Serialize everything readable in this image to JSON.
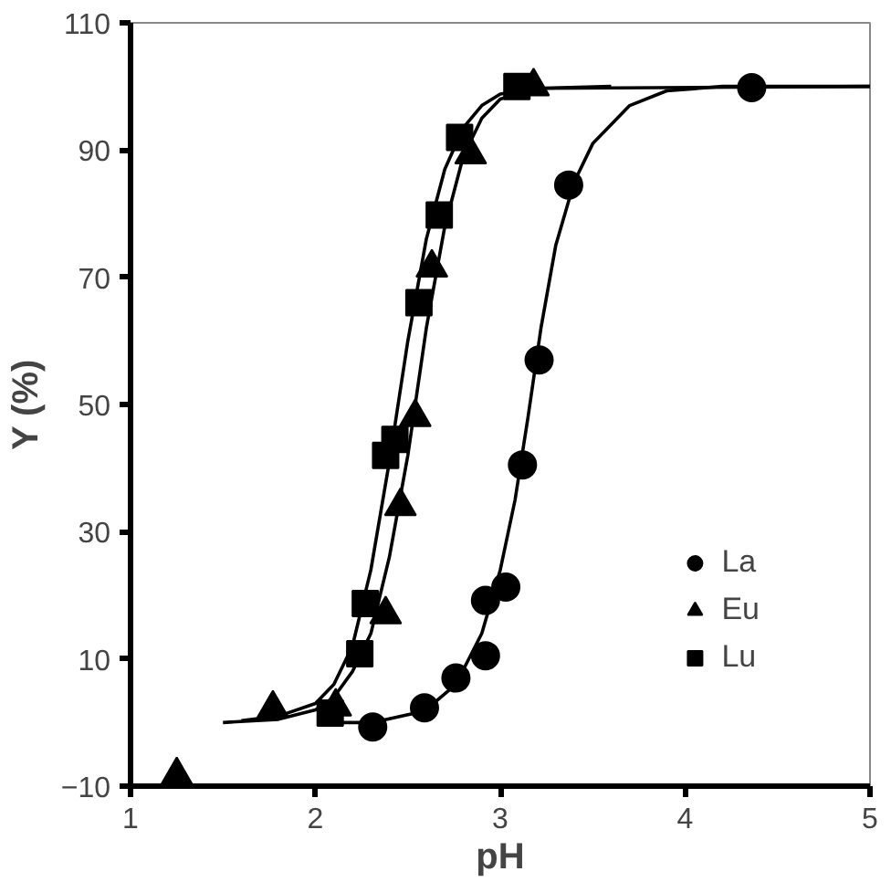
{
  "chart_data": {
    "type": "scatter",
    "xlabel": "pH",
    "ylabel": "Y (%)",
    "xlim": [
      1,
      5
    ],
    "ylim": [
      -10,
      110
    ],
    "xticks": [
      1,
      2,
      3,
      4,
      5
    ],
    "yticks": [
      -10,
      10,
      30,
      50,
      70,
      90,
      110
    ],
    "grid": false,
    "legend": "bottom right",
    "series": [
      {
        "name": "La",
        "color": "#000000",
        "marker": "circle",
        "x": [
          2.31,
          2.59,
          2.76,
          2.92,
          2.92,
          3.03,
          3.12,
          3.21,
          3.37,
          4.36
        ],
        "values": [
          -0.7,
          2.3,
          7,
          10.5,
          19.2,
          21.3,
          40.5,
          57,
          84.5,
          99.8
        ]
      },
      {
        "name": "Eu",
        "color": "#000000",
        "marker": "triangle",
        "x": [
          1.25,
          1.77,
          2.11,
          2.38,
          2.46,
          2.54,
          2.63,
          2.84,
          3.18
        ],
        "values": [
          -8.3,
          2.2,
          2.5,
          17,
          34,
          48,
          71.5,
          89.3,
          100
        ]
      },
      {
        "name": "Lu",
        "color": "#000000",
        "marker": "square",
        "x": [
          2.08,
          2.24,
          2.27,
          2.38,
          2.43,
          2.56,
          2.67,
          2.78,
          3.09
        ],
        "values": [
          1.5,
          10.8,
          18.7,
          42,
          44.5,
          66,
          79.8,
          92,
          100
        ]
      },
      {
        "type": "line",
        "color": "#000000",
        "line_style": "solid",
        "x": [
          2.1,
          2.31,
          2.59,
          2.76,
          2.9,
          3.0,
          3.08,
          3.15,
          3.22,
          3.3,
          3.4,
          3.5,
          3.7,
          3.9,
          4.2,
          5
        ],
        "values": [
          0,
          0,
          1.8,
          6,
          14,
          24,
          35,
          48,
          62,
          75,
          85,
          91,
          97,
          99.3,
          100,
          100
        ]
      },
      {
        "type": "line",
        "color": "#000000",
        "line_style": "solid",
        "x": [
          1.5,
          1.8,
          2.0,
          2.1,
          2.2,
          2.3,
          2.4,
          2.5,
          2.6,
          2.7,
          2.8,
          2.9,
          3.0,
          3.2,
          5
        ],
        "values": [
          0,
          0.5,
          2,
          4,
          8,
          14,
          26,
          42,
          62,
          78,
          89,
          95,
          98,
          99.7,
          100
        ]
      },
      {
        "type": "line",
        "color": "#000000",
        "line_style": "solid",
        "x": [
          1.6,
          1.8,
          2.0,
          2.1,
          2.2,
          2.3,
          2.4,
          2.5,
          2.6,
          2.7,
          2.8,
          2.9,
          3.0,
          3.2,
          3.6
        ],
        "values": [
          0.3,
          1,
          3,
          6,
          12,
          24,
          41,
          60,
          76,
          87,
          93.5,
          97,
          98.8,
          99.7,
          100
        ]
      }
    ]
  }
}
